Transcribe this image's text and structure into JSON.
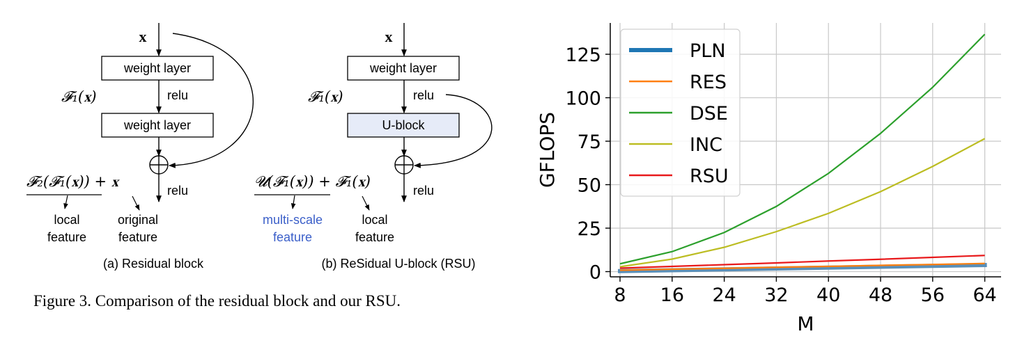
{
  "figure3": {
    "residual": {
      "input_label": "x",
      "layer1": "weight layer",
      "layer2": "weight layer",
      "f1_label": "𝓕₁(𝐱)",
      "relu1": "relu",
      "relu2": "relu",
      "output_expr": "𝓕₂(𝓕₁(𝐱)) + 𝐱",
      "local_feature_line1": "local",
      "local_feature_line2": "feature",
      "original_feature_line1": "original",
      "original_feature_line2": "feature",
      "subcaption": "(a) Residual block"
    },
    "rsu": {
      "input_label": "x",
      "layer1": "weight layer",
      "ublock": "U-block",
      "f1_label": "𝓕₁(𝐱)",
      "relu1": "relu",
      "relu2": "relu",
      "output_expr": "𝓤(𝓕₁(𝐱)) + 𝓕₁(𝐱)",
      "multi_line1": "multi-scale",
      "multi_line2": "feature",
      "local_feature_line1": "local",
      "local_feature_line2": "feature",
      "subcaption": "(b) ReSidual U-block (RSU)"
    },
    "caption": "Figure 3. Comparison of the residual block and our RSU.",
    "colors": {
      "ublock_fill": "#e6ebf8",
      "multi_scale_text": "#3b5fc9"
    }
  },
  "chart_data": {
    "type": "line",
    "xlabel": "M",
    "ylabel": "GFLOPS",
    "xlim": [
      6.5,
      66.5
    ],
    "ylim": [
      -3,
      143
    ],
    "xticks": [
      8,
      16,
      24,
      32,
      40,
      48,
      56,
      64
    ],
    "yticks": [
      0,
      25,
      50,
      75,
      100,
      125
    ],
    "grid": true,
    "legend_position": "top-left",
    "x": [
      8,
      16,
      24,
      32,
      40,
      48,
      56,
      64
    ],
    "series": [
      {
        "name": "PLN",
        "color": "#1f77b4",
        "values": [
          0.3,
          0.8,
          1.3,
          1.8,
          2.3,
          2.8,
          3.3,
          3.8
        ]
      },
      {
        "name": "RES",
        "color": "#ff7f0e",
        "values": [
          0.8,
          1.4,
          1.9,
          2.5,
          3.0,
          3.6,
          4.1,
          4.7
        ]
      },
      {
        "name": "DSE",
        "color": "#2ca02c",
        "values": [
          4.5,
          11.5,
          22.5,
          37.5,
          56.5,
          79.5,
          106.0,
          136.5
        ]
      },
      {
        "name": "INC",
        "color": "#bcbd22",
        "values": [
          2.8,
          7.2,
          14.0,
          23.0,
          33.5,
          46.0,
          60.5,
          76.5
        ]
      },
      {
        "name": "RSU",
        "color": "#e8191b",
        "values": [
          2.0,
          3.0,
          4.0,
          5.0,
          6.1,
          7.1,
          8.2,
          9.3
        ]
      }
    ]
  }
}
